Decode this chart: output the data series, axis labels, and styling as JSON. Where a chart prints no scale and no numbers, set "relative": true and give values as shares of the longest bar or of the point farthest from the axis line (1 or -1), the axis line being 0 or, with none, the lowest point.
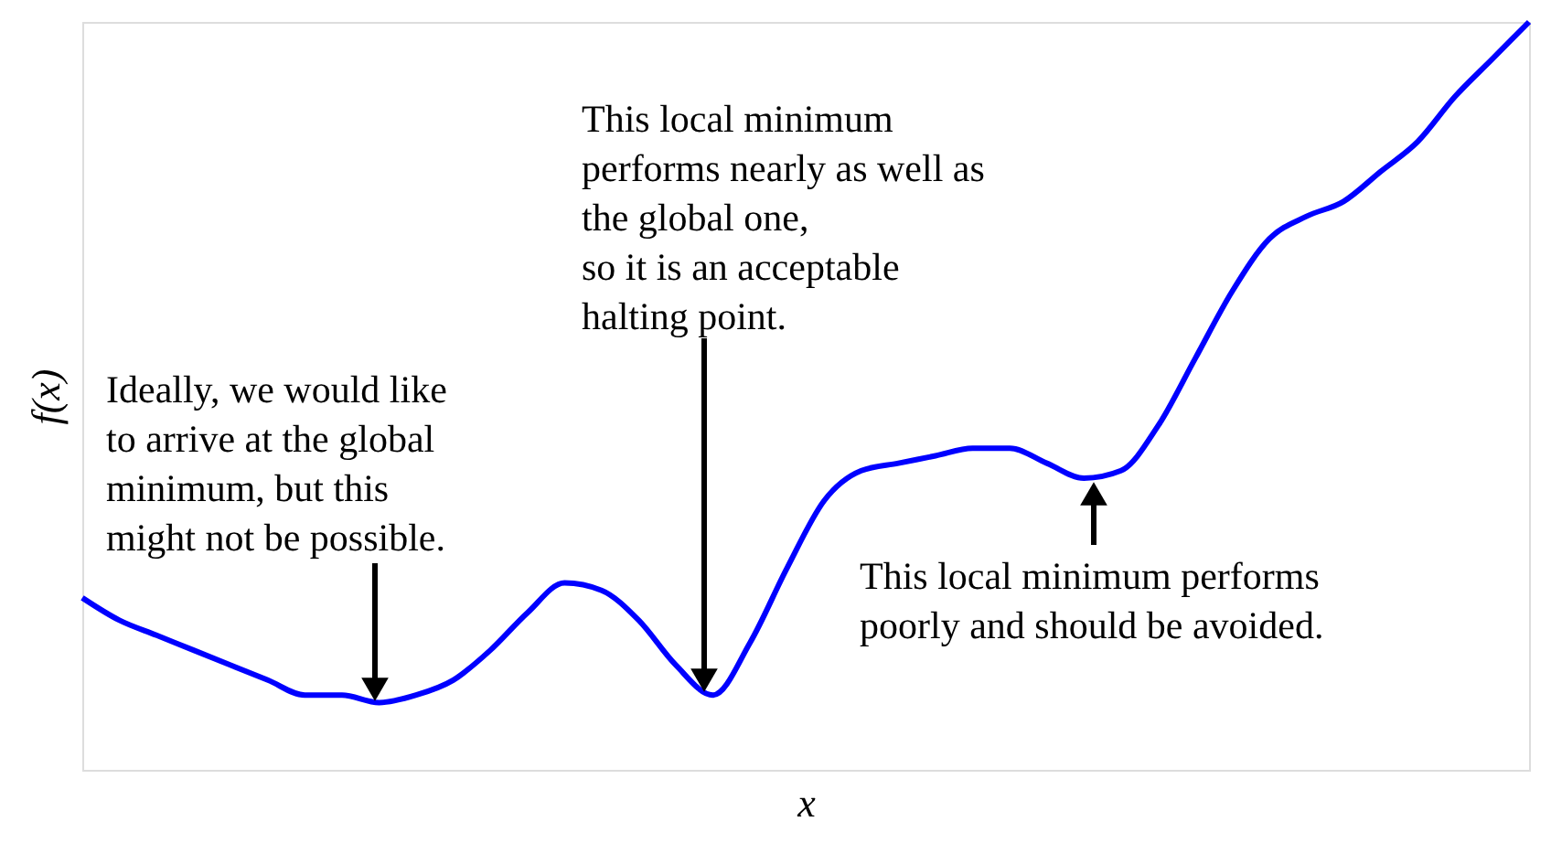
{
  "chart_data": {
    "type": "line",
    "relative": true,
    "xlabel": "x",
    "ylabel": "f(x)",
    "categories": [
      null,
      null,
      null,
      null,
      null,
      null,
      null,
      null,
      null,
      null,
      null,
      null,
      null,
      null,
      null,
      null,
      null,
      null,
      null,
      null,
      null,
      null,
      null,
      null,
      null,
      null,
      null,
      null,
      null,
      null,
      null,
      null,
      null,
      null,
      null,
      null,
      null,
      null,
      null,
      null
    ],
    "series": [
      {
        "color": "#0000ff",
        "values": [
          0.23,
          0.2,
          0.18,
          0.16,
          0.14,
          0.12,
          0.1,
          0.1,
          0.09,
          0.1,
          0.12,
          0.16,
          0.21,
          0.25,
          0.24,
          0.2,
          0.14,
          0.1,
          0.17,
          0.27,
          0.36,
          0.4,
          0.41,
          0.42,
          0.43,
          0.43,
          0.41,
          0.39,
          0.4,
          0.46,
          0.55,
          0.64,
          0.71,
          0.74,
          0.76,
          0.8,
          0.84,
          0.9,
          0.95,
          1
        ]
      }
    ],
    "annotations": [
      "Ideally, we would like\nto arrive at the global\nminimum, but this\nmight not be possible.",
      "This local minimum\nperforms nearly as well as\nthe global one,\nso it is an acceptable\nhalting point.",
      "This local minimum performs\npoorly and should be avoided."
    ]
  }
}
